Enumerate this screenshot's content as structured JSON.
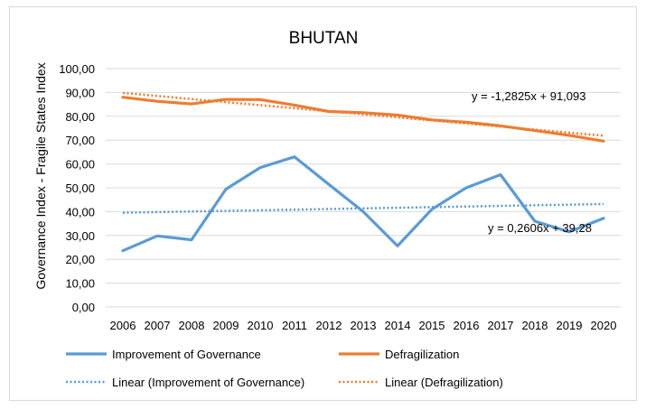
{
  "chart_data": {
    "type": "line",
    "title": "BHUTAN",
    "ylabel": "Governance Index -    Fragile States Index",
    "xlabel": "",
    "ylim": [
      0,
      100
    ],
    "yticks": [
      "0,00",
      "10,00",
      "20,00",
      "30,00",
      "40,00",
      "50,00",
      "60,00",
      "70,00",
      "80,00",
      "90,00",
      "100,00"
    ],
    "categories": [
      "2006",
      "2007",
      "2008",
      "2009",
      "2010",
      "2011",
      "2012",
      "2013",
      "2014",
      "2015",
      "2016",
      "2017",
      "2018",
      "2019",
      "2020"
    ],
    "grid": true,
    "legend_position": "bottom",
    "series": [
      {
        "name": "Improvement of Governance",
        "style": "solid",
        "color": "#5b9bd5",
        "values": [
          23.6,
          29.8,
          28.2,
          49.4,
          58.5,
          63.0,
          51.4,
          40.0,
          25.6,
          41.0,
          50.0,
          55.5,
          36.0,
          31.5,
          37.2
        ]
      },
      {
        "name": "Defragilization",
        "style": "solid",
        "color": "#ed7d31",
        "values": [
          88.0,
          86.3,
          85.2,
          87.1,
          87.0,
          84.7,
          82.0,
          81.5,
          80.5,
          78.5,
          77.5,
          76.0,
          74.0,
          72.0,
          69.6
        ]
      },
      {
        "name": "Linear (Improvement of Governance)",
        "style": "dotted",
        "color": "#5b9bd5",
        "trend": {
          "slope": 0.2606,
          "intercept": 39.28
        }
      },
      {
        "name": "Linear (Defragilization)",
        "style": "dotted",
        "color": "#ed7d31",
        "trend": {
          "slope": -1.2825,
          "intercept": 91.093
        }
      }
    ],
    "annotations": [
      {
        "text": "y = -1,2825x + 91,093",
        "series": "Linear (Defragilization)"
      },
      {
        "text": "y = 0,2606x + 39,28",
        "series": "Linear (Improvement of Governance)"
      }
    ]
  },
  "colors": {
    "gridline": "#d9d9d9",
    "frame": "#d9d9d9"
  }
}
